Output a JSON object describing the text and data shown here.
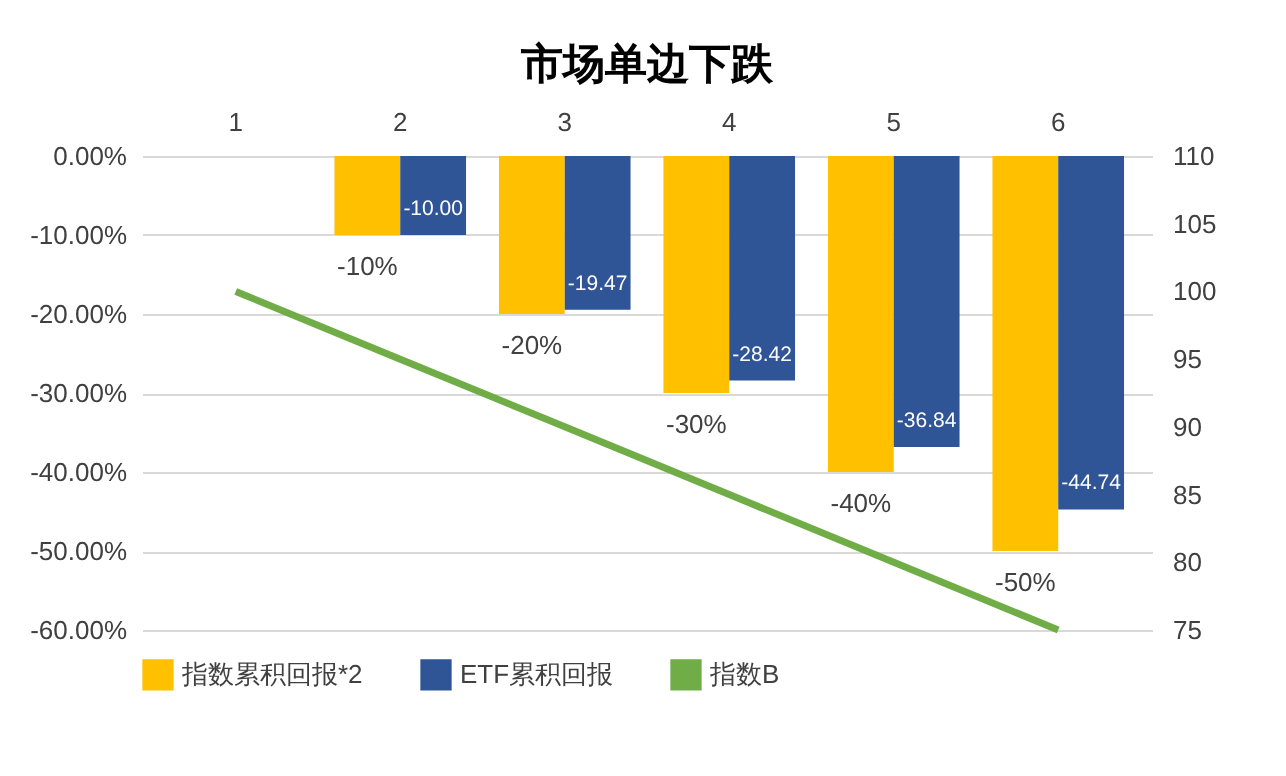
{
  "chart_data": {
    "type": "bar",
    "title": "市场单边下跌",
    "categories": [
      "1",
      "2",
      "3",
      "4",
      "5",
      "6"
    ],
    "series": [
      {
        "name": "指数累积回报*2",
        "color": "#ffc000",
        "values": [
          0,
          -10,
          -20,
          -30,
          -40,
          -50
        ],
        "value_labels": [
          null,
          "-10%",
          "-20%",
          "-30%",
          "-40%",
          "-50%"
        ]
      },
      {
        "name": "ETF累积回报",
        "color": "#2f5597",
        "values": [
          0,
          -10.0,
          -19.47,
          -28.42,
          -36.84,
          -44.74
        ],
        "value_labels": [
          null,
          "-10.00",
          "-19.47",
          "-28.42",
          "-36.84",
          "-44.74"
        ]
      },
      {
        "name": "指数B",
        "type": "line",
        "axis": "y2",
        "color": "#70ad47",
        "values": [
          100,
          95,
          90,
          85,
          80,
          75
        ]
      }
    ],
    "ylim": [
      -60,
      0
    ],
    "yticks": [
      {
        "value": 0,
        "label": "0.00%"
      },
      {
        "value": -10,
        "label": "-10.00%"
      },
      {
        "value": -20,
        "label": "-20.00%"
      },
      {
        "value": -30,
        "label": "-30.00%"
      },
      {
        "value": -40,
        "label": "-40.00%"
      },
      {
        "value": -50,
        "label": "-50.00%"
      },
      {
        "value": -60,
        "label": "-60.00%"
      }
    ],
    "y2lim": [
      75,
      110
    ],
    "y2ticks": [
      75,
      80,
      85,
      90,
      95,
      100,
      105,
      110
    ],
    "grid": "y",
    "legend": "bottom"
  }
}
